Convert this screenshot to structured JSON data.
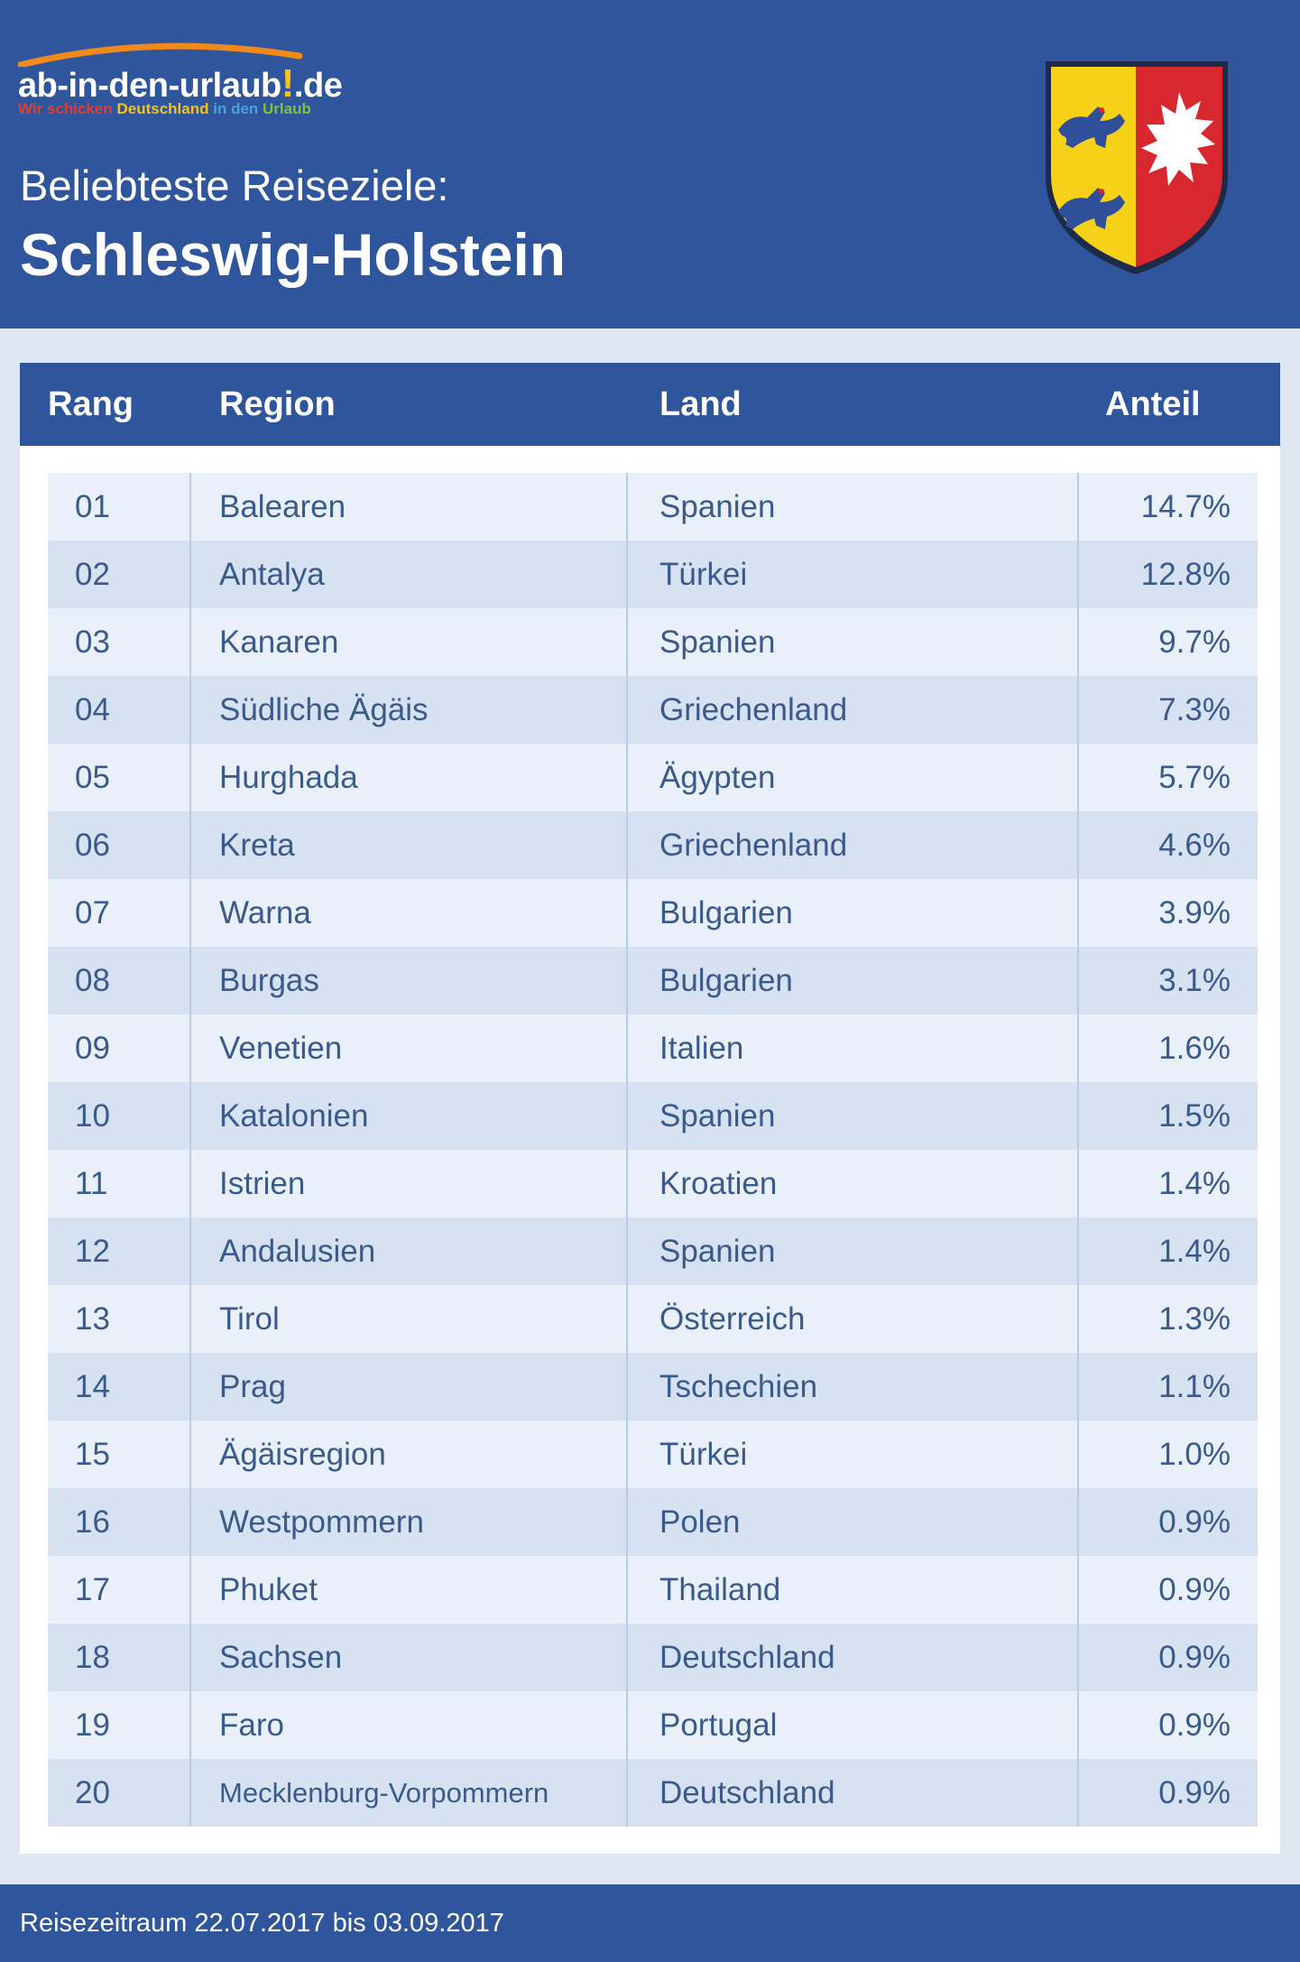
{
  "logo": {
    "name": "ab-in-den-urlaub",
    "excl": "!",
    "tld": "de",
    "tagline_1": "Wir schicken",
    "tagline_2": "Deutschland",
    "tagline_3": "in den",
    "tagline_4": "Urlaub",
    "arc_color": "#f08a1c"
  },
  "header": {
    "subtitle": "Beliebteste Reiseziele:",
    "title": "Schleswig-Holstein",
    "background": "#2f559c"
  },
  "crest": {
    "left_field": "#f7d117",
    "right_field": "#d8282f",
    "lion_color": "#2f4f9a",
    "nettle_color": "#ffffff"
  },
  "table": {
    "headers": {
      "rang": "Rang",
      "region": "Region",
      "land": "Land",
      "anteil": "Anteil"
    },
    "rows": [
      {
        "rang": "01",
        "region": "Balearen",
        "land": "Spanien",
        "anteil": "14.7%"
      },
      {
        "rang": "02",
        "region": "Antalya",
        "land": "Türkei",
        "anteil": "12.8%"
      },
      {
        "rang": "03",
        "region": "Kanaren",
        "land": "Spanien",
        "anteil": "9.7%"
      },
      {
        "rang": "04",
        "region": "Südliche Ägäis",
        "land": "Griechenland",
        "anteil": "7.3%"
      },
      {
        "rang": "05",
        "region": "Hurghada",
        "land": "Ägypten",
        "anteil": "5.7%"
      },
      {
        "rang": "06",
        "region": "Kreta",
        "land": "Griechenland",
        "anteil": "4.6%"
      },
      {
        "rang": "07",
        "region": "Warna",
        "land": "Bulgarien",
        "anteil": "3.9%"
      },
      {
        "rang": "08",
        "region": "Burgas",
        "land": "Bulgarien",
        "anteil": "3.1%"
      },
      {
        "rang": "09",
        "region": "Venetien",
        "land": "Italien",
        "anteil": "1.6%"
      },
      {
        "rang": "10",
        "region": "Katalonien",
        "land": "Spanien",
        "anteil": "1.5%"
      },
      {
        "rang": "11",
        "region": "Istrien",
        "land": "Kroatien",
        "anteil": "1.4%"
      },
      {
        "rang": "12",
        "region": "Andalusien",
        "land": "Spanien",
        "anteil": "1.4%"
      },
      {
        "rang": "13",
        "region": "Tirol",
        "land": "Österreich",
        "anteil": "1.3%"
      },
      {
        "rang": "14",
        "region": "Prag",
        "land": "Tschechien",
        "anteil": "1.1%"
      },
      {
        "rang": "15",
        "region": "Ägäisregion",
        "land": "Türkei",
        "anteil": "1.0%"
      },
      {
        "rang": "16",
        "region": "Westpommern",
        "land": "Polen",
        "anteil": "0.9%"
      },
      {
        "rang": "17",
        "region": "Phuket",
        "land": "Thailand",
        "anteil": "0.9%"
      },
      {
        "rang": "18",
        "region": "Sachsen",
        "land": "Deutschland",
        "anteil": "0.9%"
      },
      {
        "rang": "19",
        "region": "Faro",
        "land": "Portugal",
        "anteil": "0.9%"
      },
      {
        "rang": "20",
        "region": "Mecklenburg-Vorpommern",
        "land": "Deutschland",
        "anteil": "0.9%"
      }
    ]
  },
  "footer": {
    "text": "Reisezeitraum 22.07.2017 bis 03.09.2017"
  }
}
